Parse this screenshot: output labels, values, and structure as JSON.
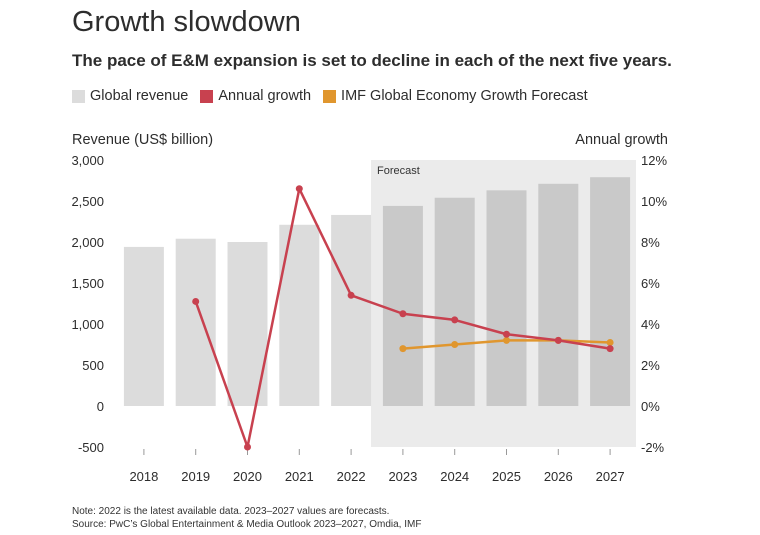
{
  "title": "Growth slowdown",
  "subtitle": "The pace of E&M expansion is set to decline in each of the next five years.",
  "legend": [
    {
      "label": "Global revenue",
      "color": "#dcdcdc"
    },
    {
      "label": "Annual growth",
      "color": "#c8414f"
    },
    {
      "label": "IMF Global Economy Growth Forecast",
      "color": "#e0962e"
    }
  ],
  "left_axis_title": "Revenue (US$ billion)",
  "right_axis_title": "Annual growth",
  "forecast_label": "Forecast",
  "note_line1": "Note: 2022 is the latest available data. 2023–2027 values are forecasts.",
  "note_line2": "Source: PwC’s Global Entertainment & Media Outlook 2023–2027, Omdia, IMF",
  "colors": {
    "bar": "#dcdcdc",
    "bar_forecast": "#c9c9c9",
    "forecast_bg": "#ebebeb",
    "growth": "#c8414f",
    "imf": "#e0962e"
  },
  "chart_data": {
    "type": "bar",
    "categories": [
      "2018",
      "2019",
      "2020",
      "2021",
      "2022",
      "2023",
      "2024",
      "2025",
      "2026",
      "2027"
    ],
    "forecast_start": "2023",
    "left_axis": {
      "ylim": [
        -500,
        3000
      ],
      "ticks": [
        "-500",
        "0",
        "500",
        "1,000",
        "1,500",
        "2,000",
        "2,500",
        "3,000"
      ],
      "tick_values": [
        -500,
        0,
        500,
        1000,
        1500,
        2000,
        2500,
        3000
      ]
    },
    "right_axis": {
      "ylim": [
        -2,
        12
      ],
      "ticks": [
        "-2%",
        "0%",
        "2%",
        "4%",
        "6%",
        "8%",
        "10%",
        "12%"
      ],
      "tick_values": [
        -2,
        0,
        2,
        4,
        6,
        8,
        10,
        12
      ]
    },
    "series": [
      {
        "name": "Global revenue",
        "type": "bar",
        "axis": "left",
        "values": [
          1940,
          2040,
          2000,
          2210,
          2330,
          2440,
          2540,
          2630,
          2710,
          2790
        ]
      },
      {
        "name": "Annual growth",
        "type": "line",
        "axis": "right",
        "values": [
          null,
          5.1,
          -2.0,
          10.6,
          5.4,
          4.5,
          4.2,
          3.5,
          3.2,
          2.8
        ]
      },
      {
        "name": "IMF Global Economy Growth Forecast",
        "type": "line",
        "axis": "right",
        "values": [
          null,
          null,
          null,
          null,
          null,
          2.8,
          3.0,
          3.2,
          3.2,
          3.1
        ]
      }
    ]
  }
}
